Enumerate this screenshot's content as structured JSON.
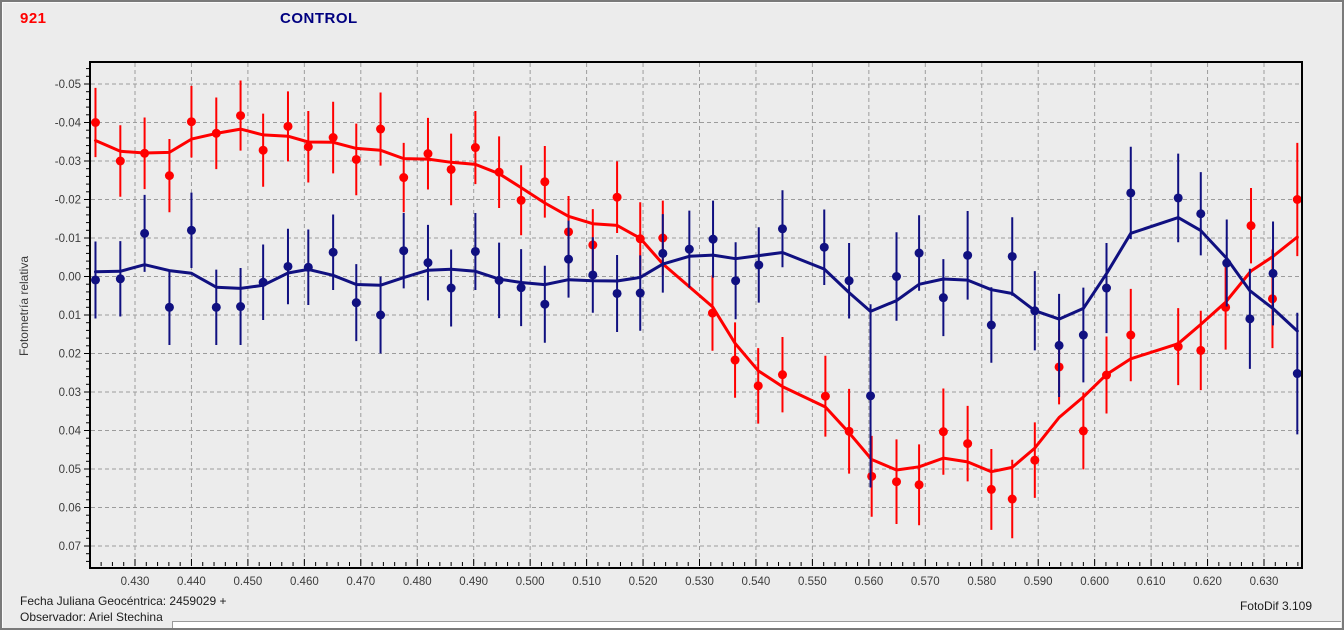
{
  "window": {
    "background": "#ececec",
    "border_color": "#7a7a7a"
  },
  "header": {
    "object_label": "921",
    "object_color": "#ff0000",
    "control_label": "CONTROL",
    "control_color": "#000080"
  },
  "footer": {
    "julian_date": "Fecha Juliana Geocéntrica: 2459029 +",
    "observer": "Observador: Ariel Stechina",
    "app_version": "FotoDif 3.109"
  },
  "chart_data": {
    "type": "scatter",
    "title": "CONTROL",
    "xlabel": "",
    "ylabel": "Fotometría relativa",
    "grid": true,
    "legend_position": "none",
    "x_axis": {
      "min": 0.422,
      "max": 0.6367,
      "tick_step": 0.01,
      "minor_tick_step": 0.002,
      "ticks": [
        "0.430",
        "0.440",
        "0.450",
        "0.460",
        "0.470",
        "0.480",
        "0.490",
        "0.500",
        "0.510",
        "0.520",
        "0.530",
        "0.540",
        "0.550",
        "0.560",
        "0.570",
        "0.580",
        "0.590",
        "0.600",
        "0.610",
        "0.620",
        "0.630"
      ]
    },
    "y_axis": {
      "min": -0.0557,
      "max": 0.0757,
      "tick_step": 0.01,
      "minor_tick_step": 0.002,
      "inverted": true,
      "ticks": [
        "-0.05",
        "-0.04",
        "-0.03",
        "-0.02",
        "-0.01",
        "0.00",
        "0.01",
        "0.02",
        "0.03",
        "0.04",
        "0.05",
        "0.06",
        "0.07"
      ]
    },
    "grid_color": "#9c9c9c",
    "axis_color": "#000000",
    "smoothing_kernel": [
      1,
      2,
      3,
      2,
      1
    ],
    "series": [
      {
        "name": "921",
        "color": "#ff0000",
        "marker": "circle",
        "points": [
          [
            0.423,
            -0.04,
            0.009
          ],
          [
            0.4274,
            -0.03,
            0.0093
          ],
          [
            0.4317,
            -0.032,
            0.0093
          ],
          [
            0.4361,
            -0.0262,
            0.0095
          ],
          [
            0.44,
            -0.0402,
            0.0093
          ],
          [
            0.4444,
            -0.0372,
            0.0093
          ],
          [
            0.4487,
            -0.0418,
            0.0091
          ],
          [
            0.4527,
            -0.0328,
            0.0095
          ],
          [
            0.4571,
            -0.039,
            0.0091
          ],
          [
            0.4607,
            -0.0337,
            0.0093
          ],
          [
            0.4651,
            -0.0361,
            0.0093
          ],
          [
            0.4692,
            -0.0304,
            0.0093
          ],
          [
            0.4735,
            -0.0383,
            0.0095
          ],
          [
            0.4776,
            -0.0257,
            0.009
          ],
          [
            0.4819,
            -0.0319,
            0.0093
          ],
          [
            0.486,
            -0.0278,
            0.0093
          ],
          [
            0.4903,
            -0.0335,
            0.0095
          ],
          [
            0.4945,
            -0.0271,
            0.0093
          ],
          [
            0.4984,
            -0.0198,
            0.0091
          ],
          [
            0.5026,
            -0.0246,
            0.0093
          ],
          [
            0.5068,
            -0.0116,
            0.0093
          ],
          [
            0.5111,
            -0.0082,
            0.0093
          ],
          [
            0.5154,
            -0.0206,
            0.0093
          ],
          [
            0.5195,
            -0.0098,
            0.0095
          ],
          [
            0.5235,
            -0.01,
            0.0097
          ],
          [
            0.5323,
            0.0095,
            0.0098
          ],
          [
            0.5363,
            0.0217,
            0.0098
          ],
          [
            0.5404,
            0.0284,
            0.0098
          ],
          [
            0.5447,
            0.0255,
            0.0098
          ],
          [
            0.5523,
            0.0311,
            0.0105
          ],
          [
            0.5565,
            0.0402,
            0.011
          ],
          [
            0.5605,
            0.0519,
            0.0105
          ],
          [
            0.5649,
            0.0533,
            0.011
          ],
          [
            0.5689,
            0.0541,
            0.0105
          ],
          [
            0.5732,
            0.0403,
            0.0112
          ],
          [
            0.5775,
            0.0434,
            0.0098
          ],
          [
            0.5817,
            0.0553,
            0.0105
          ],
          [
            0.5854,
            0.0578,
            0.0102
          ],
          [
            0.5894,
            0.0477,
            0.0098
          ],
          [
            0.5937,
            0.0235,
            0.0097
          ],
          [
            0.598,
            0.0401,
            0.01
          ],
          [
            0.6021,
            0.0256,
            0.01
          ],
          [
            0.6064,
            0.0152,
            0.012
          ],
          [
            0.6148,
            0.0182,
            0.01
          ],
          [
            0.6188,
            0.0192,
            0.0103
          ],
          [
            0.6232,
            0.008,
            0.011
          ],
          [
            0.6277,
            -0.0132,
            0.0098
          ],
          [
            0.6315,
            0.0058,
            0.0128
          ],
          [
            0.6359,
            -0.02,
            0.0147
          ]
        ]
      },
      {
        "name": "CONTROL",
        "color": "#101080",
        "marker": "circle",
        "points": [
          [
            0.423,
            0.0009,
            0.01
          ],
          [
            0.4274,
            0.0006,
            0.0098
          ],
          [
            0.4317,
            -0.0112,
            0.01
          ],
          [
            0.4361,
            0.008,
            0.0098
          ],
          [
            0.44,
            -0.012,
            0.0098
          ],
          [
            0.4444,
            0.008,
            0.0098
          ],
          [
            0.4487,
            0.0078,
            0.01
          ],
          [
            0.4527,
            0.0015,
            0.0098
          ],
          [
            0.4571,
            -0.0026,
            0.0098
          ],
          [
            0.4607,
            -0.0024,
            0.0098
          ],
          [
            0.4651,
            -0.0063,
            0.0098
          ],
          [
            0.4692,
            0.0068,
            0.01
          ],
          [
            0.4735,
            0.01,
            0.01
          ],
          [
            0.4776,
            -0.0067,
            0.0098
          ],
          [
            0.4819,
            -0.0036,
            0.0098
          ],
          [
            0.486,
            0.003,
            0.01
          ],
          [
            0.4903,
            -0.0065,
            0.01
          ],
          [
            0.4945,
            0.001,
            0.0098
          ],
          [
            0.4984,
            0.0029,
            0.01
          ],
          [
            0.5026,
            0.0072,
            0.01
          ],
          [
            0.5068,
            -0.0045,
            0.01
          ],
          [
            0.5111,
            -0.0004,
            0.0098
          ],
          [
            0.5154,
            0.0044,
            0.01
          ],
          [
            0.5195,
            0.0043,
            0.0098
          ],
          [
            0.5235,
            -0.006,
            0.0102
          ],
          [
            0.5282,
            -0.0071,
            0.01
          ],
          [
            0.5324,
            -0.0097,
            0.01
          ],
          [
            0.5364,
            0.0011,
            0.01
          ],
          [
            0.5405,
            -0.003,
            0.0098
          ],
          [
            0.5447,
            -0.0124,
            0.01
          ],
          [
            0.5521,
            -0.0076,
            0.0098
          ],
          [
            0.5565,
            0.0011,
            0.0098
          ],
          [
            0.5603,
            0.031,
            0.0238
          ],
          [
            0.5649,
            0.0,
            0.0115
          ],
          [
            0.5689,
            -0.0061,
            0.0098
          ],
          [
            0.5732,
            0.0055,
            0.01
          ],
          [
            0.5775,
            -0.0055,
            0.0115
          ],
          [
            0.5817,
            0.0126,
            0.0098
          ],
          [
            0.5854,
            -0.0052,
            0.0102
          ],
          [
            0.5894,
            0.0089,
            0.0103
          ],
          [
            0.5937,
            0.0179,
            0.0134
          ],
          [
            0.598,
            0.0152,
            0.0123
          ],
          [
            0.6021,
            0.003,
            0.0117
          ],
          [
            0.6064,
            -0.0217,
            0.012
          ],
          [
            0.6148,
            -0.0204,
            0.0115
          ],
          [
            0.6188,
            -0.0163,
            0.0108
          ],
          [
            0.6234,
            -0.0035,
            0.0113
          ],
          [
            0.6275,
            0.011,
            0.013
          ],
          [
            0.6316,
            -0.0008,
            0.0135
          ],
          [
            0.6359,
            0.0252,
            0.0158
          ]
        ]
      }
    ]
  }
}
